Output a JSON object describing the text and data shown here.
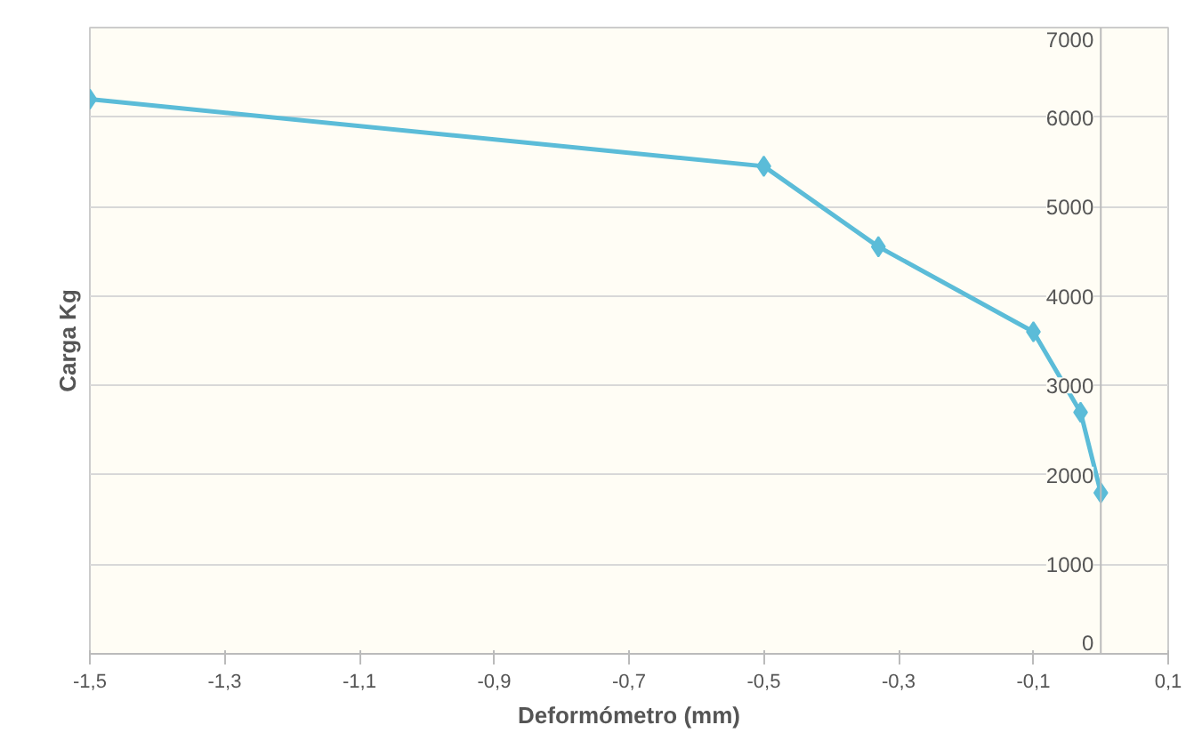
{
  "chart_data": {
    "type": "line",
    "xlabel": "Deformómetro (mm)",
    "ylabel": "Carga Kg",
    "x": [
      -1.5,
      -0.5,
      -0.33,
      -0.1,
      -0.03,
      0.0
    ],
    "series": [
      {
        "color": "#5bbcd8",
        "values": [
          6200,
          5450,
          4550,
          3600,
          2700,
          1800
        ]
      }
    ],
    "xlim": [
      -1.5,
      0.1
    ],
    "xticks": [
      {
        "value": -1.5,
        "label": "-1,5"
      },
      {
        "value": -1.3,
        "label": "-1,3"
      },
      {
        "value": -1.1,
        "label": "-1,1"
      },
      {
        "value": -0.9,
        "label": "-0,9"
      },
      {
        "value": -0.7,
        "label": "-0,7"
      },
      {
        "value": -0.5,
        "label": "-0,5"
      },
      {
        "value": -0.3,
        "label": "-0,3"
      },
      {
        "value": -0.1,
        "label": "-0,1"
      },
      {
        "value": 0.1,
        "label": "0,1"
      }
    ],
    "ylim": [
      0,
      7000
    ],
    "yticks": [
      0,
      1000,
      2000,
      3000,
      4000,
      5000,
      6000,
      7000
    ],
    "grid": "y",
    "marker": "diamond",
    "line_style": "solid"
  }
}
